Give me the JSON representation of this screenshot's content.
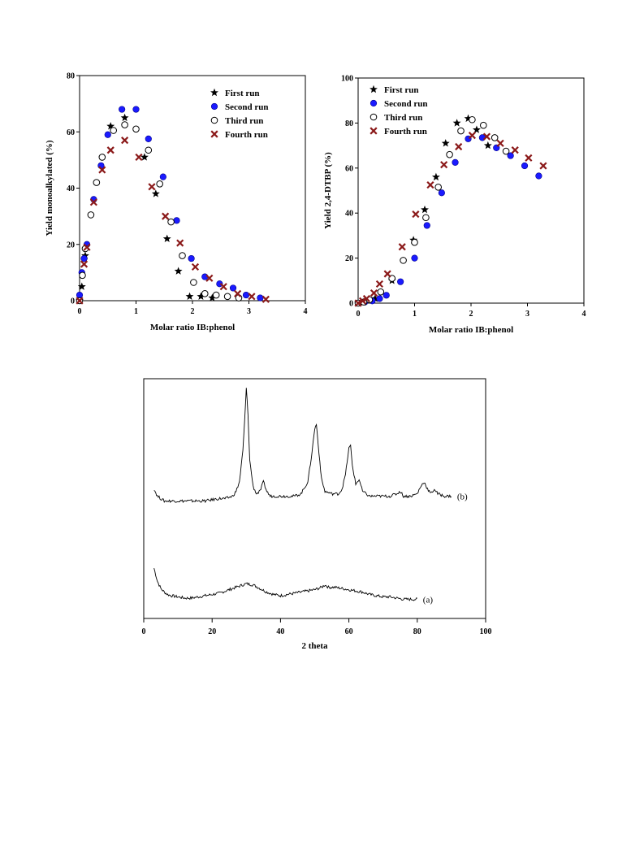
{
  "chart_data": [
    {
      "type": "scatter",
      "title": "",
      "xlabel": "Molar ratio IB:phenol",
      "ylabel": "Yield monoalkylated (%)",
      "xlim": [
        0,
        4
      ],
      "ylim": [
        0,
        80
      ],
      "xticks": [
        "0",
        "1",
        "2",
        "3",
        "4"
      ],
      "yticks": [
        "0",
        "20",
        "40",
        "60",
        "80"
      ],
      "legend_position": "top-right",
      "series": [
        {
          "name": "First run",
          "marker": "star",
          "color": "#000000",
          "x": [
            0.0,
            0.04,
            0.1,
            0.55,
            0.8,
            1.15,
            1.35,
            1.55,
            1.75,
            1.95,
            2.15,
            2.35
          ],
          "y": [
            0.0,
            5.0,
            16.0,
            62.0,
            65.0,
            51.0,
            38.0,
            22.0,
            10.5,
            1.5,
            1.5,
            1.0
          ]
        },
        {
          "name": "Second run",
          "marker": "filled-circle",
          "color": "#1a1aff",
          "x": [
            0.0,
            0.04,
            0.08,
            0.13,
            0.25,
            0.38,
            0.5,
            0.75,
            1.0,
            1.22,
            1.48,
            1.72,
            1.98,
            2.22,
            2.48,
            2.72,
            2.95,
            3.2
          ],
          "y": [
            2.0,
            10.0,
            15.0,
            20.0,
            36.0,
            48.0,
            59.0,
            68.0,
            68.0,
            57.5,
            44.0,
            28.5,
            15.0,
            8.5,
            6.0,
            4.5,
            2.0,
            1.0
          ]
        },
        {
          "name": "Third run",
          "marker": "open-circle",
          "color": "#000000",
          "x": [
            0.0,
            0.05,
            0.1,
            0.2,
            0.3,
            0.4,
            0.6,
            0.8,
            1.0,
            1.22,
            1.42,
            1.62,
            1.82,
            2.02,
            2.22,
            2.42,
            2.62,
            2.82
          ],
          "y": [
            0.0,
            9.0,
            18.5,
            30.5,
            42.0,
            51.0,
            60.5,
            62.5,
            61.0,
            53.5,
            41.5,
            28.0,
            16.0,
            6.5,
            2.5,
            2.0,
            1.5,
            1.0
          ]
        },
        {
          "name": "Fourth run",
          "marker": "x",
          "color": "#8b1a1a",
          "x": [
            0.0,
            0.08,
            0.13,
            0.25,
            0.4,
            0.55,
            0.8,
            1.05,
            1.28,
            1.52,
            1.78,
            2.05,
            2.3,
            2.55,
            2.8,
            3.05,
            3.3
          ],
          "y": [
            0.0,
            13.0,
            19.0,
            35.0,
            46.5,
            53.5,
            57.0,
            51.0,
            40.5,
            30.0,
            20.5,
            12.0,
            8.0,
            5.0,
            2.5,
            1.5,
            0.5
          ]
        }
      ]
    },
    {
      "type": "scatter",
      "title": "",
      "xlabel": "Molar ratio IB:phenol",
      "ylabel": "Yield 2,4-DTBP (%)",
      "xlim": [
        0,
        4
      ],
      "ylim": [
        0,
        100
      ],
      "xticks": [
        "0",
        "1",
        "2",
        "3",
        "4"
      ],
      "yticks": [
        "0",
        "20",
        "40",
        "60",
        "80",
        "100"
      ],
      "legend_position": "top-left",
      "series": [
        {
          "name": "First run",
          "marker": "star",
          "color": "#000000",
          "x": [
            0.0,
            0.1,
            0.3,
            0.6,
            0.98,
            1.18,
            1.38,
            1.55,
            1.75,
            1.95,
            2.1,
            2.3
          ],
          "y": [
            0.0,
            0.5,
            2.0,
            10.0,
            28.0,
            41.5,
            56.0,
            71.0,
            80.0,
            82.0,
            77.0,
            70.0
          ]
        },
        {
          "name": "Second run",
          "marker": "filled-circle",
          "color": "#1a1aff",
          "x": [
            0.0,
            0.12,
            0.25,
            0.38,
            0.5,
            0.75,
            1.0,
            1.22,
            1.48,
            1.72,
            1.95,
            2.2,
            2.45,
            2.7,
            2.95,
            3.2
          ],
          "y": [
            0.0,
            0.5,
            1.0,
            2.0,
            3.5,
            9.5,
            20.0,
            34.5,
            49.0,
            62.5,
            73.0,
            73.5,
            69.0,
            65.5,
            61.0,
            56.5
          ]
        },
        {
          "name": "Third run",
          "marker": "open-circle",
          "color": "#000000",
          "x": [
            0.0,
            0.1,
            0.2,
            0.4,
            0.6,
            0.8,
            1.0,
            1.2,
            1.42,
            1.62,
            1.82,
            2.02,
            2.22,
            2.42,
            2.62
          ],
          "y": [
            0.0,
            0.5,
            1.5,
            5.0,
            11.0,
            19.0,
            27.0,
            38.0,
            51.5,
            66.0,
            76.5,
            81.5,
            79.0,
            73.5,
            67.5
          ]
        },
        {
          "name": "Fourth run",
          "marker": "x",
          "color": "#8b1a1a",
          "x": [
            0.0,
            0.08,
            0.15,
            0.28,
            0.38,
            0.52,
            0.78,
            1.02,
            1.28,
            1.52,
            1.78,
            2.02,
            2.28,
            2.52,
            2.78,
            3.02,
            3.28
          ],
          "y": [
            0.0,
            1.0,
            2.0,
            4.5,
            8.5,
            13.0,
            25.0,
            39.5,
            52.5,
            61.5,
            69.5,
            74.5,
            74.0,
            71.0,
            68.0,
            64.5,
            61.0
          ]
        }
      ]
    },
    {
      "type": "line",
      "title": "",
      "xlabel": "2 theta",
      "ylabel": "",
      "xlim": [
        0,
        100
      ],
      "xticks": [
        "0",
        "20",
        "40",
        "60",
        "80",
        "100"
      ],
      "y_axis_shown": false,
      "y_units": "relative intensity (0 = bottom of frame, 1 = top of frame)",
      "series": [
        {
          "name": "(a)",
          "color": "#000000",
          "x": [
            3,
            4,
            5,
            6,
            7,
            8,
            10,
            12,
            14,
            16,
            18,
            20,
            22,
            24,
            26,
            28,
            30,
            32,
            34,
            36,
            38,
            40,
            42,
            44,
            46,
            48,
            50,
            52,
            53,
            54,
            56,
            58,
            60,
            62,
            64,
            66,
            68,
            70,
            72,
            74,
            76,
            78,
            80
          ],
          "y": [
            0.21,
            0.155,
            0.125,
            0.11,
            0.1,
            0.095,
            0.09,
            0.085,
            0.085,
            0.09,
            0.095,
            0.1,
            0.105,
            0.115,
            0.125,
            0.135,
            0.145,
            0.14,
            0.125,
            0.11,
            0.1,
            0.095,
            0.1,
            0.105,
            0.11,
            0.115,
            0.12,
            0.13,
            0.14,
            0.13,
            0.13,
            0.125,
            0.12,
            0.115,
            0.11,
            0.1,
            0.095,
            0.09,
            0.09,
            0.085,
            0.08,
            0.08,
            0.08
          ]
        },
        {
          "name": "(b)",
          "color": "#000000",
          "x": [
            3,
            4,
            5,
            6,
            8,
            10,
            14,
            18,
            22,
            24,
            26,
            27,
            28,
            29,
            29.5,
            30,
            30.5,
            31,
            32,
            33,
            34,
            35,
            36,
            37,
            38,
            40,
            42,
            44,
            46,
            48,
            49,
            50,
            50.5,
            51,
            52,
            53,
            55,
            57,
            58,
            59,
            60,
            60.5,
            61,
            62,
            63,
            64,
            66,
            68,
            70,
            72,
            74,
            75,
            76,
            78,
            80,
            81,
            82,
            83,
            84,
            85,
            86,
            88,
            90
          ],
          "y": [
            0.54,
            0.51,
            0.5,
            0.49,
            0.49,
            0.49,
            0.49,
            0.49,
            0.5,
            0.5,
            0.51,
            0.53,
            0.57,
            0.7,
            0.82,
            0.96,
            0.85,
            0.66,
            0.55,
            0.52,
            0.53,
            0.57,
            0.53,
            0.51,
            0.51,
            0.51,
            0.51,
            0.51,
            0.52,
            0.57,
            0.67,
            0.79,
            0.81,
            0.73,
            0.58,
            0.53,
            0.52,
            0.52,
            0.54,
            0.6,
            0.71,
            0.72,
            0.64,
            0.56,
            0.58,
            0.53,
            0.51,
            0.51,
            0.51,
            0.51,
            0.52,
            0.53,
            0.51,
            0.51,
            0.52,
            0.55,
            0.57,
            0.54,
            0.52,
            0.54,
            0.52,
            0.51,
            0.51
          ]
        }
      ]
    }
  ]
}
